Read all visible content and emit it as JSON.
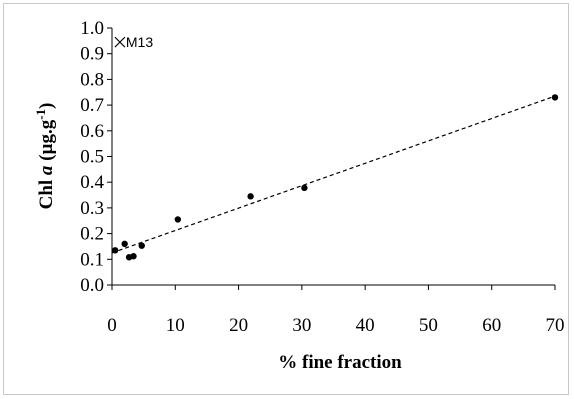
{
  "chart_data": {
    "type": "scatter",
    "title": "",
    "xlabel": "% fine fraction",
    "ylabel": {
      "main": "Chl ",
      "italic": "a",
      "unit": " (µg.g",
      "sup": "-1",
      "close": ")"
    },
    "xlim": [
      0,
      70
    ],
    "ylim": [
      0,
      1.0
    ],
    "x_ticks": [
      "0",
      "10",
      "20",
      "30",
      "40",
      "50",
      "60",
      "70"
    ],
    "y_ticks": [
      "0.0",
      "0.1",
      "0.2",
      "0.3",
      "0.4",
      "0.5",
      "0.6",
      "0.7",
      "0.8",
      "0.9",
      "1.0"
    ],
    "grid": false,
    "legend": "none",
    "annotation": {
      "label": "M13",
      "marker": "x",
      "x": 0.3,
      "y": 0.945
    },
    "points": [
      {
        "x": 0.5,
        "y": 0.135
      },
      {
        "x": 2.0,
        "y": 0.16
      },
      {
        "x": 2.7,
        "y": 0.108
      },
      {
        "x": 3.4,
        "y": 0.112
      },
      {
        "x": 4.7,
        "y": 0.153
      },
      {
        "x": 10.4,
        "y": 0.255
      },
      {
        "x": 21.9,
        "y": 0.345
      },
      {
        "x": 30.4,
        "y": 0.378
      },
      {
        "x": 70.0,
        "y": 0.73
      }
    ],
    "trendline": {
      "style": "dashed",
      "x": [
        0,
        70
      ],
      "y": [
        0.125,
        0.735
      ]
    },
    "colors": {
      "points": "#000000",
      "trendline": "#000000",
      "axes": "#000000"
    }
  }
}
